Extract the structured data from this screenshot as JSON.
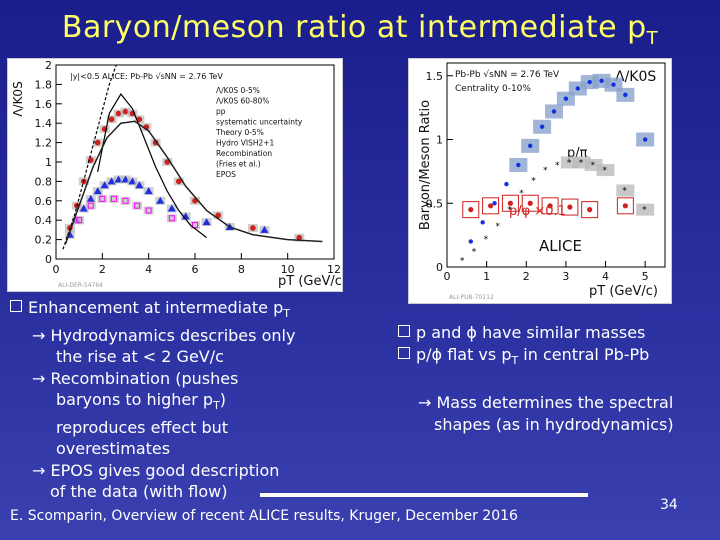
{
  "slide": {
    "title_main": "Baryon/meson ratio at intermediate p",
    "title_sub": "T",
    "footer": "E. Scomparin, Overview of recent ALICE results, Kruger, December 2016",
    "page_number": "34"
  },
  "bullets_left": [
    {
      "pre": "Enhancement at intermediate p",
      "sub": "T",
      "post": ""
    },
    {
      "pre": "Hydrodynamics describes only",
      "sub": "",
      "post": ""
    },
    {
      "pre": "the rise at < 2 GeV/c",
      "sub": "",
      "post": ""
    },
    {
      "pre": "Recombination (pushes",
      "sub": "",
      "post": ""
    },
    {
      "pre": "baryons to higher p",
      "sub": "T",
      "post": ")"
    },
    {
      "pre": "reproduces effect but",
      "sub": "",
      "post": ""
    },
    {
      "pre": "overestimates",
      "sub": "",
      "post": ""
    },
    {
      "pre": "EPOS gives good description",
      "sub": "",
      "post": ""
    },
    {
      "pre": "of the data (with flow)",
      "sub": "",
      "post": ""
    }
  ],
  "bullets_right": [
    {
      "pre": "p and ϕ have similar masses",
      "sub": "",
      "post": ""
    },
    {
      "pre": "p/ϕ flat vs p",
      "sub": "T",
      "post": " in central Pb-Pb"
    },
    {
      "pre": "Mass determines the spectral",
      "sub": "",
      "post": ""
    },
    {
      "pre": "shapes (as in hydrodynamics)",
      "sub": "",
      "post": ""
    }
  ],
  "chart_data": [
    {
      "type": "scatter",
      "title": "",
      "xlabel": "pT (GeV/c)",
      "ylabel": "Λ/K0S",
      "xlim": [
        0,
        12
      ],
      "ylim": [
        0,
        2.0
      ],
      "xticks": [
        "0",
        "2",
        "4",
        "6",
        "8",
        "10",
        "12"
      ],
      "yticks": [
        "0",
        "0.2",
        "0.4",
        "0.6",
        "0.8",
        "1",
        "1.2",
        "1.4",
        "1.6",
        "1.8",
        "2"
      ],
      "legend_header": "|y|<0.5   ALICE: Pb-Pb √sNN = 2.76 TeV",
      "legend": [
        "Λ/K0S 0-5%",
        "Λ/K0S 60-80%",
        "pp",
        "systematic uncertainty",
        "Theory 0-5%",
        "Hydro VISH2+1",
        "Recombination",
        "(Fries et al.)",
        "EPOS"
      ],
      "watermark": "ALI-DER-54764",
      "series": [
        {
          "name": "0-5%",
          "x": [
            0.6,
            0.9,
            1.2,
            1.5,
            1.8,
            2.1,
            2.4,
            2.7,
            3.0,
            3.3,
            3.6,
            3.9,
            4.3,
            4.8,
            5.3,
            6.0,
            7.0,
            8.5,
            10.5
          ],
          "y": [
            0.32,
            0.55,
            0.8,
            1.02,
            1.2,
            1.34,
            1.44,
            1.5,
            1.52,
            1.5,
            1.44,
            1.36,
            1.2,
            1.0,
            0.8,
            0.6,
            0.45,
            0.32,
            0.22
          ]
        },
        {
          "name": "60-80%",
          "x": [
            0.6,
            0.9,
            1.2,
            1.5,
            1.8,
            2.1,
            2.4,
            2.7,
            3.0,
            3.3,
            3.6,
            4.0,
            4.5,
            5.0,
            5.6,
            6.5,
            7.5,
            9.0
          ],
          "y": [
            0.25,
            0.4,
            0.52,
            0.62,
            0.7,
            0.76,
            0.8,
            0.82,
            0.82,
            0.8,
            0.76,
            0.7,
            0.6,
            0.52,
            0.44,
            0.38,
            0.33,
            0.3
          ]
        },
        {
          "name": "pp",
          "x": [
            1.0,
            1.5,
            2.0,
            2.5,
            3.0,
            3.5,
            4.0,
            5.0,
            6.0
          ],
          "y": [
            0.4,
            0.55,
            0.62,
            0.62,
            0.6,
            0.55,
            0.5,
            0.42,
            0.35
          ]
        },
        {
          "name": "Hydro VISH2+1",
          "x": [
            0.3,
            0.8,
            1.3,
            1.8,
            2.3,
            2.6
          ],
          "y": [
            0.1,
            0.45,
            0.9,
            1.35,
            1.8,
            2.0
          ]
        },
        {
          "name": "Recombination",
          "x": [
            1.8,
            2.3,
            2.8,
            3.3,
            3.8,
            4.3,
            4.8,
            5.3,
            5.8,
            6.5
          ],
          "y": [
            0.9,
            1.5,
            1.7,
            1.55,
            1.25,
            0.95,
            0.7,
            0.5,
            0.35,
            0.22
          ]
        },
        {
          "name": "EPOS",
          "x": [
            0.4,
            1.0,
            1.6,
            2.2,
            2.8,
            3.4,
            4.0,
            4.8,
            5.6,
            6.5,
            7.5,
            8.5,
            10.0,
            11.5
          ],
          "y": [
            0.15,
            0.55,
            0.95,
            1.25,
            1.4,
            1.42,
            1.32,
            1.05,
            0.75,
            0.5,
            0.33,
            0.25,
            0.2,
            0.18
          ]
        }
      ]
    },
    {
      "type": "scatter",
      "title": "",
      "xlabel": "pT (GeV/c)",
      "ylabel": "Baryon/Meson Ratio",
      "xlim": [
        0,
        5.5
      ],
      "ylim": [
        0,
        1.6
      ],
      "xticks": [
        "0",
        "1",
        "2",
        "3",
        "4",
        "5"
      ],
      "yticks": [
        "0",
        "0.5",
        "1",
        "1.5"
      ],
      "legend_header": "Pb-Pb √sNN = 2.76 TeV",
      "legend_sub": "Centrality 0-10%",
      "series_labels": [
        "Λ/K0S",
        "p/π",
        "p/φ ×0.1"
      ],
      "collab_label": "ALICE",
      "watermark": "ALI-PUB-70112",
      "series": [
        {
          "name": "Λ/K0S",
          "x": [
            0.6,
            0.9,
            1.2,
            1.5,
            1.8,
            2.1,
            2.4,
            2.7,
            3.0,
            3.3,
            3.6,
            3.9,
            4.2,
            4.5,
            5.0
          ],
          "y": [
            0.2,
            0.35,
            0.5,
            0.65,
            0.8,
            0.95,
            1.1,
            1.22,
            1.32,
            1.4,
            1.45,
            1.46,
            1.43,
            1.35,
            1.0
          ]
        },
        {
          "name": "p/π",
          "x": [
            0.4,
            0.7,
            1.0,
            1.3,
            1.6,
            1.9,
            2.2,
            2.5,
            2.8,
            3.1,
            3.4,
            3.7,
            4.0,
            4.5,
            5.0
          ],
          "y": [
            0.05,
            0.12,
            0.22,
            0.32,
            0.45,
            0.58,
            0.68,
            0.76,
            0.8,
            0.82,
            0.82,
            0.8,
            0.76,
            0.6,
            0.45
          ]
        },
        {
          "name": "p/φ ×0.1",
          "x": [
            0.6,
            1.1,
            1.6,
            2.1,
            2.6,
            3.1,
            3.6,
            4.5
          ],
          "y": [
            0.45,
            0.48,
            0.5,
            0.5,
            0.48,
            0.47,
            0.45,
            0.48
          ]
        }
      ]
    }
  ]
}
